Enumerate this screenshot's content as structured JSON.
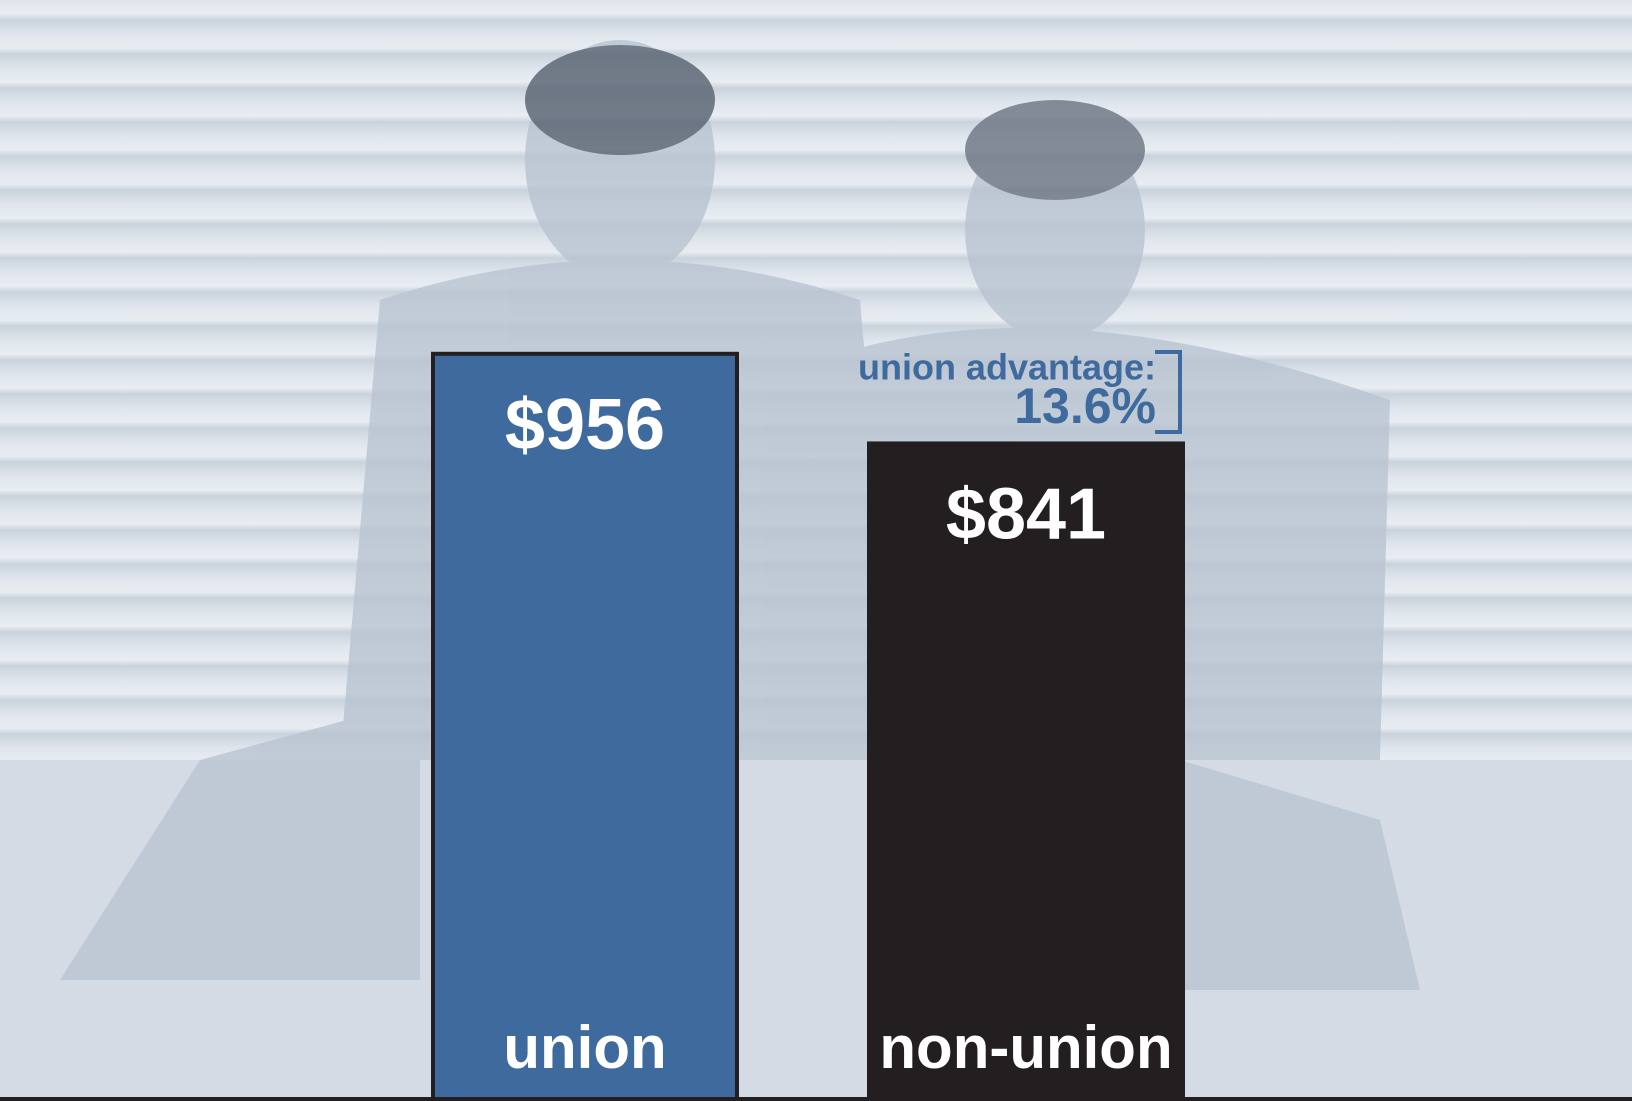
{
  "chart_data": {
    "type": "bar",
    "categories": [
      "union",
      "non-union"
    ],
    "values": [
      956,
      841
    ],
    "value_labels": [
      "$956",
      "$841"
    ],
    "colors": [
      "#3f6a9d",
      "#231f20"
    ],
    "annotations": [
      "union advantage:",
      "13.6%"
    ]
  }
}
